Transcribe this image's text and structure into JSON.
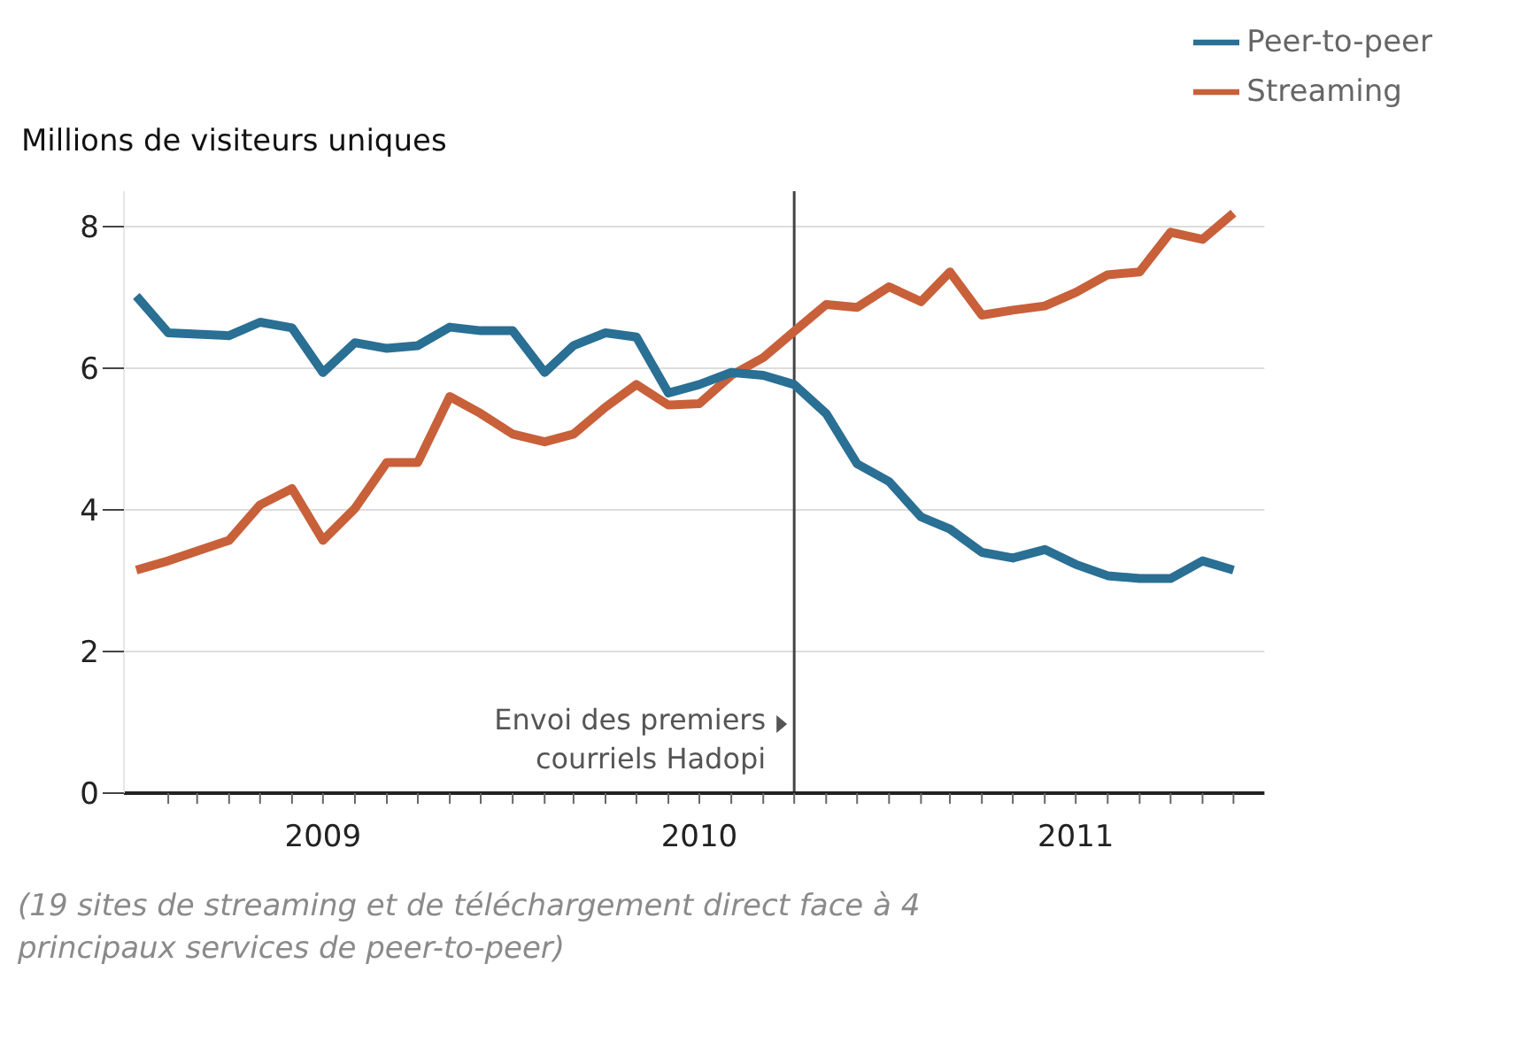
{
  "chart_data": {
    "type": "line",
    "ylabel": "Millions de visiteurs uniques",
    "x": [
      "2009-01",
      "2009-02",
      "2009-03",
      "2009-04",
      "2009-05",
      "2009-06",
      "2009-07",
      "2009-08",
      "2009-09",
      "2009-10",
      "2009-11",
      "2009-12",
      "2010-01",
      "2010-02",
      "2010-03",
      "2010-04",
      "2010-05",
      "2010-06",
      "2010-07",
      "2010-08",
      "2010-09",
      "2010-10",
      "2010-11",
      "2010-12",
      "2011-01",
      "2011-02",
      "2011-03",
      "2011-04",
      "2011-05",
      "2011-06",
      "2011-07",
      "2011-08",
      "2011-09",
      "2011-10",
      "2011-11",
      "2011-12"
    ],
    "series": [
      {
        "name": "Streaming",
        "color": "#c8603a",
        "values": [
          3.15,
          3.28,
          3.42,
          3.57,
          4.07,
          4.3,
          3.57,
          4.02,
          4.67,
          4.67,
          5.6,
          5.36,
          5.07,
          4.96,
          5.07,
          5.45,
          5.77,
          5.48,
          5.5,
          5.9,
          6.15,
          6.52,
          6.9,
          6.86,
          7.15,
          6.94,
          7.36,
          6.75,
          6.82,
          6.88,
          7.07,
          7.32,
          7.36,
          7.92,
          7.82,
          8.19
        ]
      },
      {
        "name": "Peer-to-peer",
        "color": "#2a6f94",
        "values": [
          7.02,
          6.5,
          6.48,
          6.46,
          6.65,
          6.57,
          5.94,
          6.36,
          6.28,
          6.32,
          6.58,
          6.53,
          6.53,
          5.94,
          6.32,
          6.5,
          6.44,
          5.65,
          5.77,
          5.94,
          5.9,
          5.77,
          5.36,
          4.65,
          4.4,
          3.9,
          3.73,
          3.4,
          3.32,
          3.44,
          3.23,
          3.07,
          3.03,
          3.03,
          3.28,
          3.15
        ]
      }
    ],
    "xlim": [
      "2008-12-20",
      "2011-12-31"
    ],
    "xticks": [
      {
        "value": "2009-02-01",
        "label": null
      },
      {
        "value": "2009-03-01",
        "label": null
      },
      {
        "value": "2009-04-01",
        "label": null
      },
      {
        "value": "2009-05-01",
        "label": null
      },
      {
        "value": "2009-06-01",
        "label": null
      },
      {
        "value": "2009-07-01",
        "label": "2009"
      },
      {
        "value": "2009-08-01",
        "label": null
      },
      {
        "value": "2009-09-01",
        "label": null
      },
      {
        "value": "2009-10-01",
        "label": null
      },
      {
        "value": "2009-11-01",
        "label": null
      },
      {
        "value": "2009-12-01",
        "label": null
      },
      {
        "value": "2010-01-01",
        "label": null
      },
      {
        "value": "2010-02-01",
        "label": null
      },
      {
        "value": "2010-03-01",
        "label": null
      },
      {
        "value": "2010-04-01",
        "label": null
      },
      {
        "value": "2010-05-01",
        "label": null
      },
      {
        "value": "2010-06-01",
        "label": null
      },
      {
        "value": "2010-07-01",
        "label": "2010"
      },
      {
        "value": "2010-08-01",
        "label": null
      },
      {
        "value": "2010-09-01",
        "label": null
      },
      {
        "value": "2010-10-01",
        "label": null
      },
      {
        "value": "2010-11-01",
        "label": null
      },
      {
        "value": "2010-12-01",
        "label": null
      },
      {
        "value": "2011-01-01",
        "label": null
      },
      {
        "value": "2011-02-01",
        "label": null
      },
      {
        "value": "2011-03-01",
        "label": null
      },
      {
        "value": "2011-04-01",
        "label": null
      },
      {
        "value": "2011-05-01",
        "label": null
      },
      {
        "value": "2011-06-01",
        "label": null
      },
      {
        "value": "2011-07-01",
        "label": "2011"
      },
      {
        "value": "2011-08-01",
        "label": null
      },
      {
        "value": "2011-09-01",
        "label": null
      },
      {
        "value": "2011-10-01",
        "label": null
      },
      {
        "value": "2011-11-01",
        "label": null
      },
      {
        "value": "2011-12-01",
        "label": null
      }
    ],
    "ylim": [
      0,
      8.5
    ],
    "yticks": [
      0,
      2,
      4,
      6,
      8
    ],
    "grid": "y",
    "legend": "top right",
    "ref_lines": [
      {
        "axis": "x",
        "value": "2010-10-01",
        "label": "Envoi des premiers courriels Hadopi",
        "color": "#444444"
      }
    ],
    "annotations": [
      "(19 sites de streaming et de téléchargement direct face à 4 principaux services de peer-to-peer)"
    ]
  }
}
